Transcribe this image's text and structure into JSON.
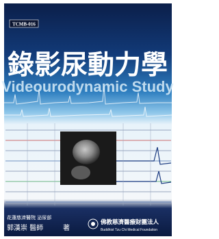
{
  "cover": {
    "series_code": "TCMB-016",
    "title_zh": "錄影尿動力學",
    "title_en": "Videourodynamic Study",
    "author_affiliation": "花蓮慈濟醫院 泌尿部",
    "author": "郭漢崇 醫師",
    "author_role": "著",
    "publisher_zh": "佛教慈濟醫療財團法人",
    "publisher_en": "Buddhist Tzu Chi Medical Foundation"
  }
}
